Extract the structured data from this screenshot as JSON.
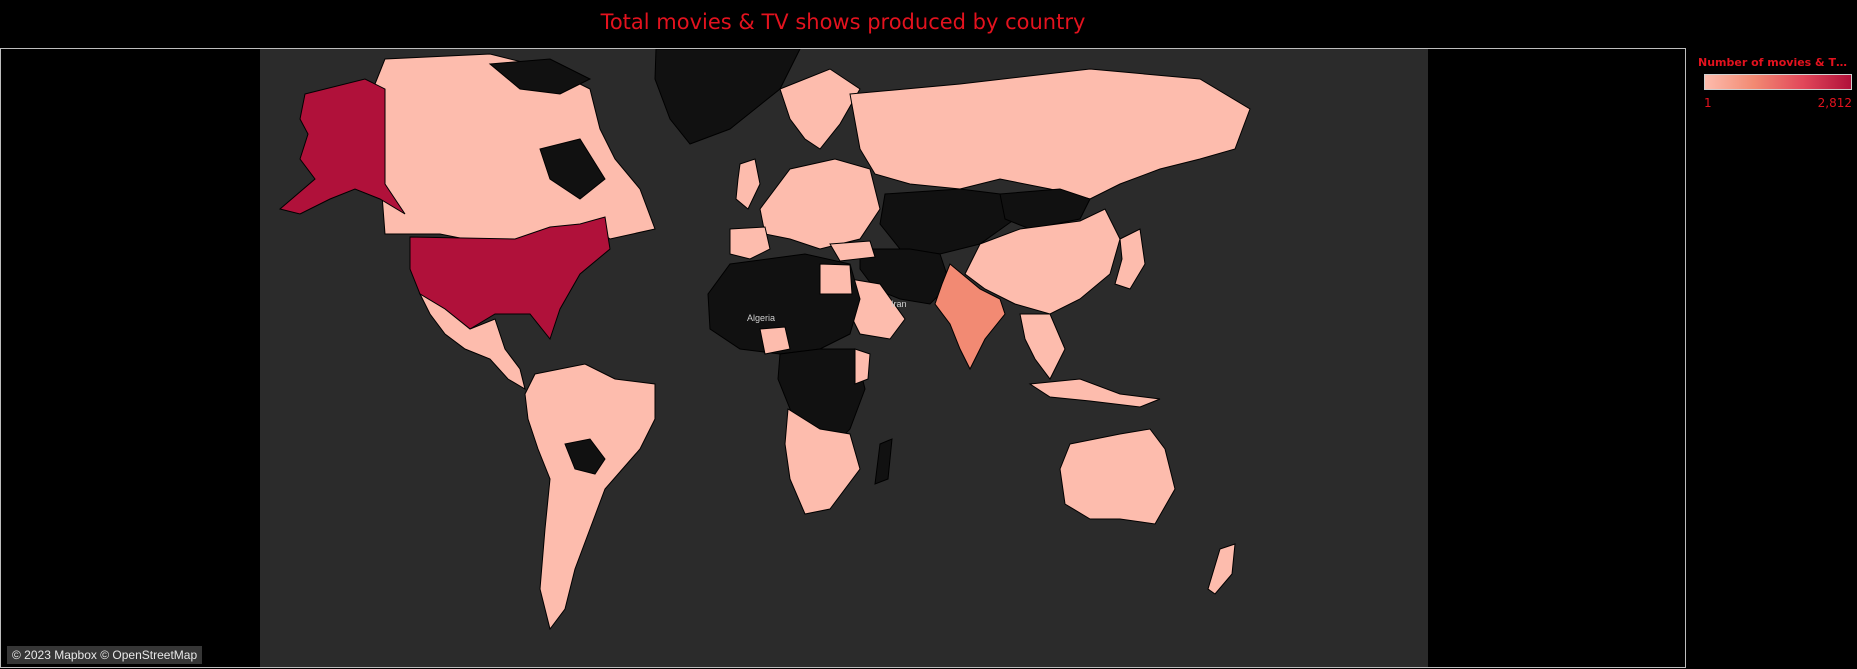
{
  "title": "Total movies & TV shows produced by country",
  "legend": {
    "title": "Number of  movies & TV...",
    "min_label": "1",
    "max_label": "2,812",
    "colors": {
      "low": "#fdbcad",
      "mid": "#f28a73",
      "high": "#b0113a"
    }
  },
  "map": {
    "attribution": "© 2023 Mapbox © OpenStreetMap",
    "place_labels": [
      "Algeria",
      "Iran"
    ],
    "colors": {
      "ocean": "#2b2b2b",
      "no_data": "#111111",
      "usa": "#b0113a",
      "india": "#f28a73",
      "others_with_data": "#fdbcad"
    }
  }
}
